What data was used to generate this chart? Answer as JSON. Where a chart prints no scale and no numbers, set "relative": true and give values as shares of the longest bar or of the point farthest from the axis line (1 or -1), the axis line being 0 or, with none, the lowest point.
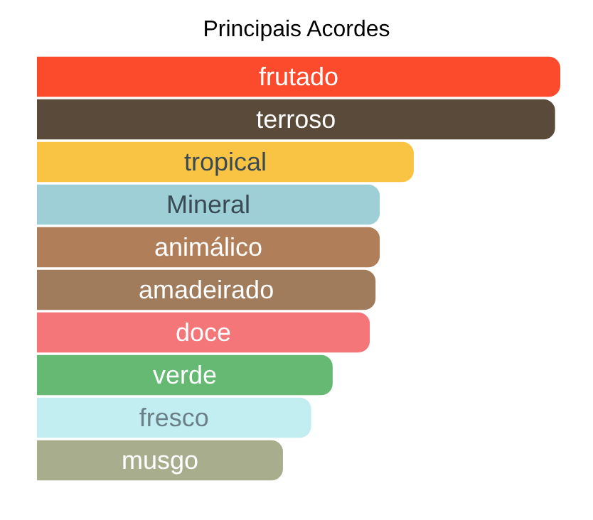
{
  "chart_data": {
    "type": "bar",
    "title": "Principais Acordes",
    "orientation": "horizontal",
    "relative": true,
    "categories": [
      "frutado",
      "terroso",
      "tropical",
      "Mineral",
      "animálico",
      "amadeirado",
      "doce",
      "verde",
      "fresco",
      "musgo"
    ],
    "values": [
      1,
      0.99,
      0.72,
      0.655,
      0.655,
      0.647,
      0.636,
      0.565,
      0.524,
      0.47
    ],
    "colors": [
      "#fb4a2c",
      "#5a4a3a",
      "#f9c344",
      "#9ecfd6",
      "#b07f5a",
      "#a07c5c",
      "#f47678",
      "#66b972",
      "#c2eef2",
      "#a8ad8e"
    ]
  }
}
